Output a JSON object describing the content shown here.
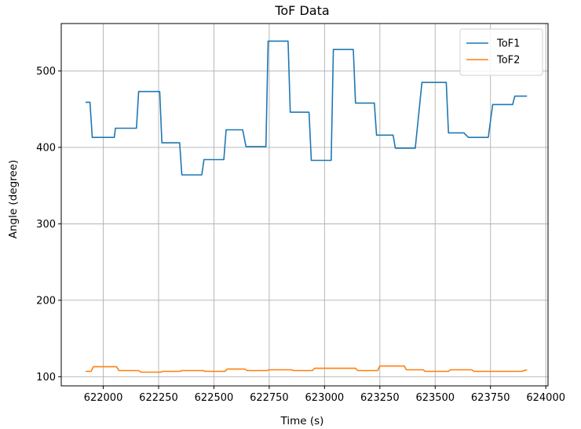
{
  "chart_data": {
    "type": "line",
    "title": "ToF Data",
    "xlabel": "Time (s)",
    "ylabel": "Angle (degree)",
    "xlim": [
      621810,
      624010
    ],
    "ylim": [
      88,
      562
    ],
    "xticks": [
      622000,
      622250,
      622500,
      622750,
      623000,
      623250,
      623500,
      623750,
      624000
    ],
    "yticks": [
      100,
      200,
      300,
      400,
      500
    ],
    "grid": true,
    "legend_position": "top-right",
    "series": [
      {
        "name": "ToF1",
        "color": "#1f77b4",
        "x": [
          621920,
          621940,
          621950,
          622050,
          622055,
          622150,
          622160,
          622255,
          622265,
          622345,
          622355,
          622445,
          622455,
          622545,
          622555,
          622630,
          622645,
          622735,
          622745,
          622835,
          622845,
          622930,
          622940,
          623030,
          623040,
          623130,
          623140,
          623225,
          623235,
          623310,
          623320,
          623410,
          623440,
          623550,
          623560,
          623630,
          623650,
          623740,
          623760,
          623850,
          623860,
          623915
        ],
        "y": [
          459,
          459,
          413,
          413,
          425,
          425,
          473,
          473,
          406,
          406,
          364,
          364,
          384,
          384,
          423,
          423,
          401,
          401,
          539,
          539,
          446,
          446,
          383,
          383,
          528,
          528,
          458,
          458,
          416,
          416,
          399,
          399,
          485,
          485,
          419,
          419,
          413,
          413,
          456,
          456,
          467,
          467
        ]
      },
      {
        "name": "ToF2",
        "color": "#ff7f0e",
        "x": [
          621920,
          621945,
          621955,
          622060,
          622070,
          622160,
          622170,
          622260,
          622270,
          622345,
          622355,
          622450,
          622460,
          622550,
          622560,
          622640,
          622650,
          622740,
          622750,
          622850,
          622860,
          622945,
          622955,
          623140,
          623150,
          623240,
          623250,
          623360,
          623370,
          623445,
          623455,
          623560,
          623570,
          623665,
          623675,
          623750,
          623760,
          623890,
          623915
        ],
        "y": [
          107,
          107,
          113,
          113,
          108,
          108,
          106,
          106,
          107,
          107,
          108,
          108,
          107,
          107,
          110,
          110,
          108,
          108,
          109,
          109,
          108,
          108,
          111,
          111,
          108,
          108,
          114,
          114,
          109,
          109,
          107,
          107,
          109,
          109,
          107,
          107,
          107,
          107,
          109
        ]
      }
    ]
  }
}
